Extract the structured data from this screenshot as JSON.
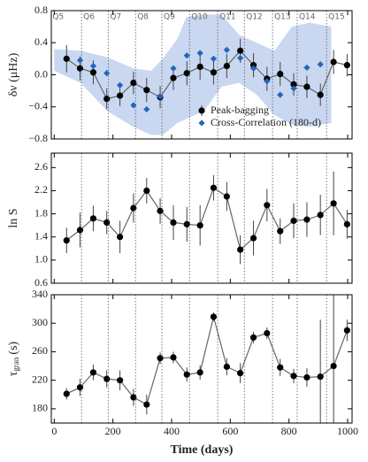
{
  "chart_data": [
    {
      "type": "line",
      "ylabel": "δν (μHz)",
      "x": [
        42,
        88,
        133,
        179,
        224,
        270,
        315,
        361,
        406,
        452,
        497,
        543,
        588,
        634,
        679,
        725,
        770,
        816,
        861,
        907,
        952,
        998
      ],
      "series": [
        {
          "name": "Peak-bagging",
          "color": "#000000",
          "values": [
            0.2,
            0.08,
            0.03,
            -0.3,
            -0.26,
            -0.1,
            -0.19,
            -0.28,
            -0.04,
            0.02,
            0.1,
            0.03,
            0.11,
            0.3,
            0.12,
            -0.05,
            0.01,
            -0.12,
            -0.15,
            -0.25,
            0.16,
            0.12
          ],
          "errors": [
            0.17,
            0.15,
            0.15,
            0.13,
            0.13,
            0.14,
            0.15,
            0.14,
            0.15,
            0.15,
            0.16,
            0.15,
            0.15,
            0.15,
            0.15,
            0.15,
            0.15,
            0.14,
            0.14,
            0.14,
            0.15,
            0.14
          ]
        },
        {
          "name": "Cross-Correlation (180-d)",
          "color": "#2166c0",
          "marker": "diamond",
          "x": [
            88,
            133,
            179,
            224,
            270,
            315,
            361,
            406,
            452,
            497,
            543,
            588,
            634,
            679,
            725,
            770,
            816,
            861,
            907
          ],
          "values": [
            0.18,
            0.11,
            0.02,
            -0.13,
            -0.38,
            -0.43,
            -0.27,
            0.08,
            0.24,
            0.27,
            0.2,
            0.31,
            0.21,
            0.08,
            -0.08,
            -0.25,
            -0.17,
            0.09,
            0.13
          ]
        }
      ],
      "band": {
        "color": "#c9d8f0",
        "x": [
          0,
          90,
          180,
          270,
          330,
          370,
          420,
          450,
          510,
          570,
          630,
          690,
          750,
          810,
          870,
          944
        ],
        "upper": [
          0.32,
          0.3,
          0.22,
          0.08,
          0.05,
          0.2,
          0.45,
          0.72,
          0.75,
          0.75,
          0.5,
          0.4,
          0.3,
          0.6,
          0.65,
          0.6
        ],
        "lower": [
          0.05,
          -0.1,
          -0.45,
          -0.65,
          -0.75,
          -0.75,
          -0.6,
          -0.55,
          -0.45,
          -0.15,
          -0.1,
          -0.25,
          -0.5,
          -0.62,
          -0.65,
          -0.6
        ]
      },
      "quarters": {
        "labels": [
          "Q5",
          "Q6",
          "Q7",
          "Q8",
          "Q9",
          "Q10",
          "Q11",
          "Q12",
          "Q13",
          "Q14",
          "Q15"
        ],
        "boundaries": [
          93,
          184,
          277,
          367,
          461,
          557,
          648,
          744,
          828,
          928
        ]
      },
      "legend": "lower right",
      "xlim": [
        -10,
        1015
      ],
      "ylim": [
        -0.8,
        0.8
      ],
      "yticks": [
        {
          "value": -0.8,
          "label": "−0.8"
        },
        {
          "value": -0.4,
          "label": "−0.4"
        },
        {
          "value": 0.0,
          "label": "0.0"
        },
        0.4,
        0.8
      ]
    },
    {
      "type": "line",
      "ylabel": "ln S",
      "x": [
        42,
        88,
        133,
        179,
        224,
        270,
        315,
        361,
        406,
        452,
        497,
        543,
        588,
        634,
        679,
        725,
        770,
        816,
        861,
        907,
        952,
        998
      ],
      "series": [
        {
          "name": "Peak-bagging",
          "color": "#000000",
          "values": [
            1.34,
            1.52,
            1.72,
            1.65,
            1.4,
            1.9,
            2.2,
            1.85,
            1.65,
            1.62,
            1.6,
            2.25,
            2.1,
            1.18,
            1.38,
            1.95,
            1.5,
            1.68,
            1.7,
            1.78,
            1.98,
            1.62
          ],
          "errors": [
            0.22,
            0.3,
            0.22,
            0.2,
            0.28,
            0.25,
            0.22,
            0.22,
            0.3,
            0.3,
            0.35,
            0.22,
            0.25,
            0.25,
            0.3,
            0.28,
            0.22,
            0.3,
            0.3,
            0.35,
            0.55,
            0.25
          ]
        }
      ],
      "xlim": [
        -10,
        1015
      ],
      "ylim": [
        0.6,
        2.85
      ],
      "yticks": [
        0.6,
        {
          "value": 1.0,
          "label": "1.0"
        },
        1.4,
        1.8,
        2.2,
        2.6
      ]
    },
    {
      "type": "line",
      "ylabel": {
        "symbol": "τ",
        "subscript": "gran",
        "unit": "(s)"
      },
      "xlabel": "Time (days)",
      "x": [
        42,
        88,
        133,
        179,
        224,
        270,
        315,
        361,
        406,
        452,
        497,
        543,
        588,
        634,
        679,
        725,
        770,
        816,
        861,
        907,
        952,
        998
      ],
      "series": [
        {
          "name": "Peak-bagging",
          "color": "#000000",
          "values": [
            201,
            210,
            231,
            222,
            220,
            196,
            186,
            251,
            252,
            228,
            231,
            309,
            239,
            230,
            280,
            286,
            238,
            226,
            224,
            225,
            240,
            290
          ],
          "errors": [
            8,
            12,
            11,
            12,
            14,
            12,
            14,
            8,
            8,
            10,
            10,
            6,
            12,
            14,
            8,
            8,
            12,
            10,
            13,
            80,
            100,
            15
          ]
        }
      ],
      "xlim": [
        -10,
        1015
      ],
      "ylim": [
        160,
        340
      ],
      "xticks": [
        0,
        200,
        400,
        600,
        800,
        1000
      ],
      "yticks": [
        180,
        220,
        260,
        300,
        340
      ]
    }
  ]
}
